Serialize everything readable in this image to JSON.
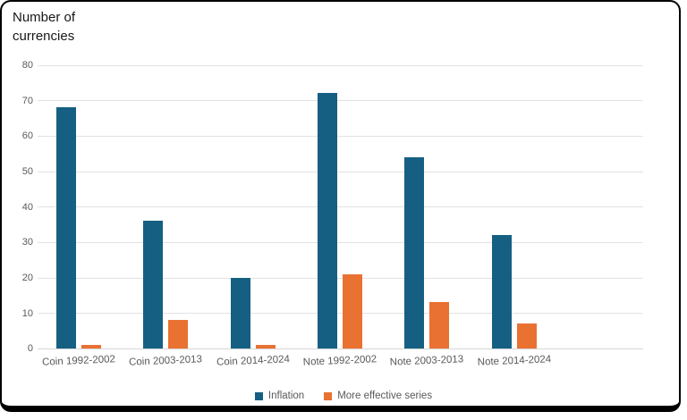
{
  "frame": {
    "border_color": "#000000",
    "background_color": "#ffffff"
  },
  "chart_data": {
    "type": "bar",
    "title": "Number of currencies",
    "xlabel": "",
    "ylabel": "Number of currencies",
    "categories": [
      "Coin 1992-2002",
      "Coin 2003-2013",
      "Coin 2014-2024",
      "Note 1992-2002",
      "Note 2003-2013",
      "Note 2014-2024"
    ],
    "series": [
      {
        "name": "Inflation",
        "color": "#156082",
        "values": [
          68,
          36,
          20,
          72,
          54,
          32
        ]
      },
      {
        "name": "More effective series",
        "color": "#E97132",
        "values": [
          1,
          8,
          1,
          21,
          13,
          7
        ]
      }
    ],
    "ylim": [
      0,
      80
    ],
    "ytick_step": 10,
    "grid": "horizontal",
    "gridline_color": "#e2e2e2",
    "axis_line_color": "#d6d6d6",
    "tick_label_color": "#595959",
    "legend_position": "bottom"
  }
}
